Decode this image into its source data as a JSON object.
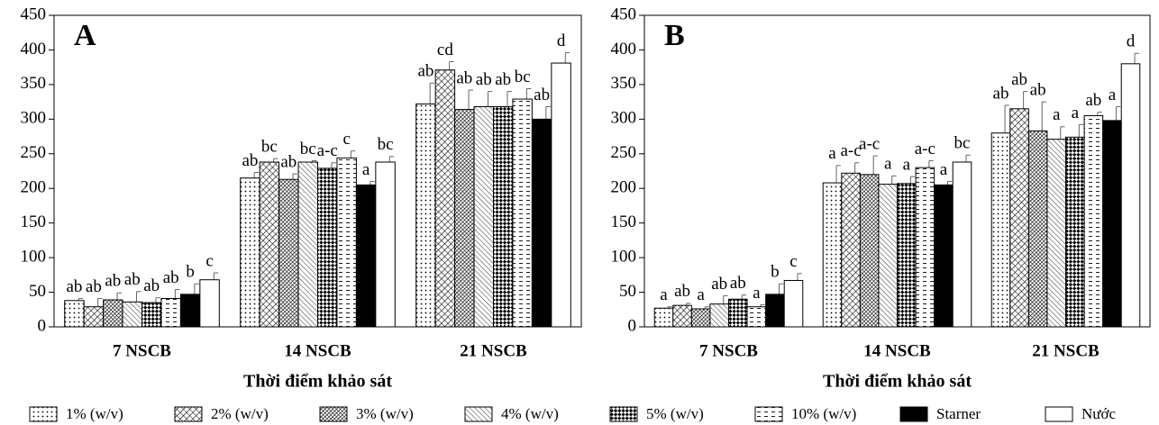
{
  "legend": [
    {
      "name": "1% (w/v)",
      "pattern": "dots"
    },
    {
      "name": "2% (w/v)",
      "pattern": "hatch"
    },
    {
      "name": "3% (w/v)",
      "pattern": "cross"
    },
    {
      "name": "4% (w/v)",
      "pattern": "diag"
    },
    {
      "name": "5% (w/v)",
      "pattern": "checker"
    },
    {
      "name": "10% (w/v)",
      "pattern": "dash"
    },
    {
      "name": "Starner",
      "pattern": "black"
    },
    {
      "name": "Nước",
      "pattern": "white"
    }
  ],
  "chart_data": [
    {
      "type": "bar",
      "panel": "A",
      "xlabel": "Thời điểm khảo sát",
      "categories": [
        "7 NSCB",
        "14 NSCB",
        "21 NSCB"
      ],
      "ylim": [
        0,
        450
      ],
      "yticks": [
        0,
        50,
        100,
        150,
        200,
        250,
        300,
        350,
        400,
        450
      ],
      "series": [
        {
          "values": [
            38,
            215,
            322
          ],
          "errors": [
            3,
            8,
            30
          ],
          "labels": [
            "ab",
            "ab",
            "ab"
          ]
        },
        {
          "values": [
            29,
            238,
            371
          ],
          "errors": [
            12,
            5,
            12
          ],
          "labels": [
            "ab",
            "bc",
            "cd"
          ]
        },
        {
          "values": [
            39,
            213,
            314
          ],
          "errors": [
            10,
            8,
            28
          ],
          "labels": [
            "ab",
            "ab",
            "ab"
          ]
        },
        {
          "values": [
            36,
            238,
            318
          ],
          "errors": [
            15,
            2,
            22
          ],
          "labels": [
            "ab",
            "bc",
            "ab"
          ]
        },
        {
          "values": [
            35,
            229,
            318
          ],
          "errors": [
            7,
            8,
            22
          ],
          "labels": [
            "ab",
            "a-c",
            "ab"
          ]
        },
        {
          "values": [
            41,
            244,
            329
          ],
          "errors": [
            13,
            10,
            15
          ],
          "labels": [
            "ab",
            "c",
            "bc"
          ]
        },
        {
          "values": [
            47,
            205,
            300
          ],
          "errors": [
            15,
            5,
            18
          ],
          "labels": [
            "b",
            "a",
            "ab"
          ]
        },
        {
          "values": [
            68,
            238,
            381
          ],
          "errors": [
            10,
            8,
            15
          ],
          "labels": [
            "c",
            "bc",
            "d"
          ]
        }
      ]
    },
    {
      "type": "bar",
      "panel": "B",
      "xlabel": "Thời điểm khảo sát",
      "categories": [
        "7 NSCB",
        "14 NSCB",
        "21 NSCB"
      ],
      "ylim": [
        0,
        450
      ],
      "yticks": [
        0,
        50,
        100,
        150,
        200,
        250,
        300,
        350,
        400,
        450
      ],
      "series": [
        {
          "values": [
            27,
            208,
            280
          ],
          "errors": [
            2,
            25,
            40
          ],
          "labels": [
            "a",
            "a",
            "ab"
          ]
        },
        {
          "values": [
            31,
            222,
            315
          ],
          "errors": [
            3,
            15,
            25
          ],
          "labels": [
            "ab",
            "a-c",
            "ab"
          ]
        },
        {
          "values": [
            26,
            220,
            283
          ],
          "errors": [
            3,
            27,
            42
          ],
          "labels": [
            "a",
            "a-c",
            "ab"
          ]
        },
        {
          "values": [
            33,
            206,
            271
          ],
          "errors": [
            12,
            12,
            18
          ],
          "labels": [
            "ab",
            "a",
            "a"
          ]
        },
        {
          "values": [
            40,
            207,
            274
          ],
          "errors": [
            6,
            10,
            18
          ],
          "labels": [
            "ab",
            "a",
            "a"
          ]
        },
        {
          "values": [
            29,
            230,
            305
          ],
          "errors": [
            3,
            10,
            5
          ],
          "labels": [
            "a",
            "a-c",
            "ab"
          ]
        },
        {
          "values": [
            47,
            205,
            298
          ],
          "errors": [
            15,
            5,
            20
          ],
          "labels": [
            "b",
            "a",
            "a"
          ]
        },
        {
          "values": [
            67,
            238,
            380
          ],
          "errors": [
            10,
            10,
            15
          ],
          "labels": [
            "c",
            "bc",
            "d"
          ]
        }
      ]
    }
  ]
}
